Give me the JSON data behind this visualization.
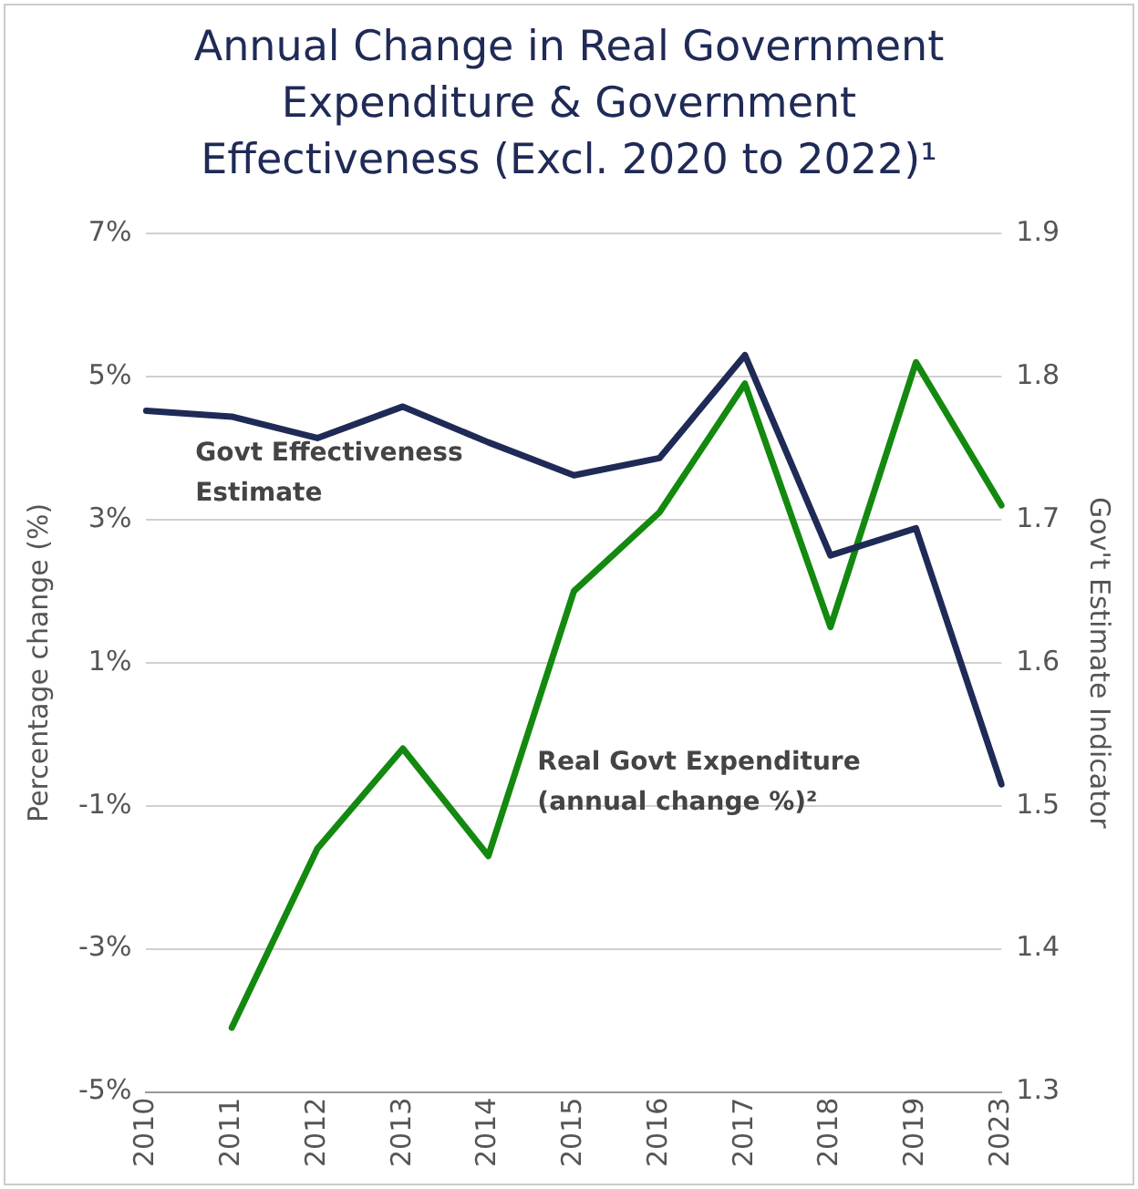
{
  "chart_data": {
    "type": "line",
    "title": "Annual Change in Real Government Expenditure & Government Effectiveness (Excl. 2020 to 2022)¹",
    "ylabel": "Percentage change (%)",
    "y2label": "Gov't Estimate Indicator",
    "categories": [
      "2010",
      "2011",
      "2012",
      "2013",
      "2014",
      "2015",
      "2016",
      "2017",
      "2018",
      "2019",
      "2023"
    ],
    "series": [
      {
        "name": "Govt Effectiveness Estimate",
        "color": "#1f2a56",
        "axis": "y2",
        "values": [
          1.776,
          1.772,
          1.757,
          1.779,
          1.754,
          1.731,
          1.743,
          1.815,
          1.675,
          1.694,
          1.515
        ]
      },
      {
        "name": "Real Govt Expenditure (annual change %)²",
        "color": "#13890f",
        "axis": "y",
        "values": [
          null,
          -4.1,
          -1.6,
          -0.2,
          -1.7,
          2.0,
          3.1,
          4.9,
          1.5,
          5.2,
          3.2
        ]
      }
    ],
    "ylim": [
      -5,
      7
    ],
    "yticks": [
      {
        "value": -5,
        "label": "-5%"
      },
      {
        "value": -3,
        "label": "-3%"
      },
      {
        "value": -1,
        "label": "-1%"
      },
      {
        "value": 1,
        "label": "1%"
      },
      {
        "value": 3,
        "label": "3%"
      },
      {
        "value": 5,
        "label": "5%"
      },
      {
        "value": 7,
        "label": "7%"
      }
    ],
    "y2lim": [
      1.3,
      1.9
    ],
    "y2ticks": [
      1.3,
      1.4,
      1.5,
      1.6,
      1.7,
      1.8,
      1.9
    ],
    "grid": "y",
    "legend": false,
    "marker": "none",
    "line_style": "solid"
  }
}
